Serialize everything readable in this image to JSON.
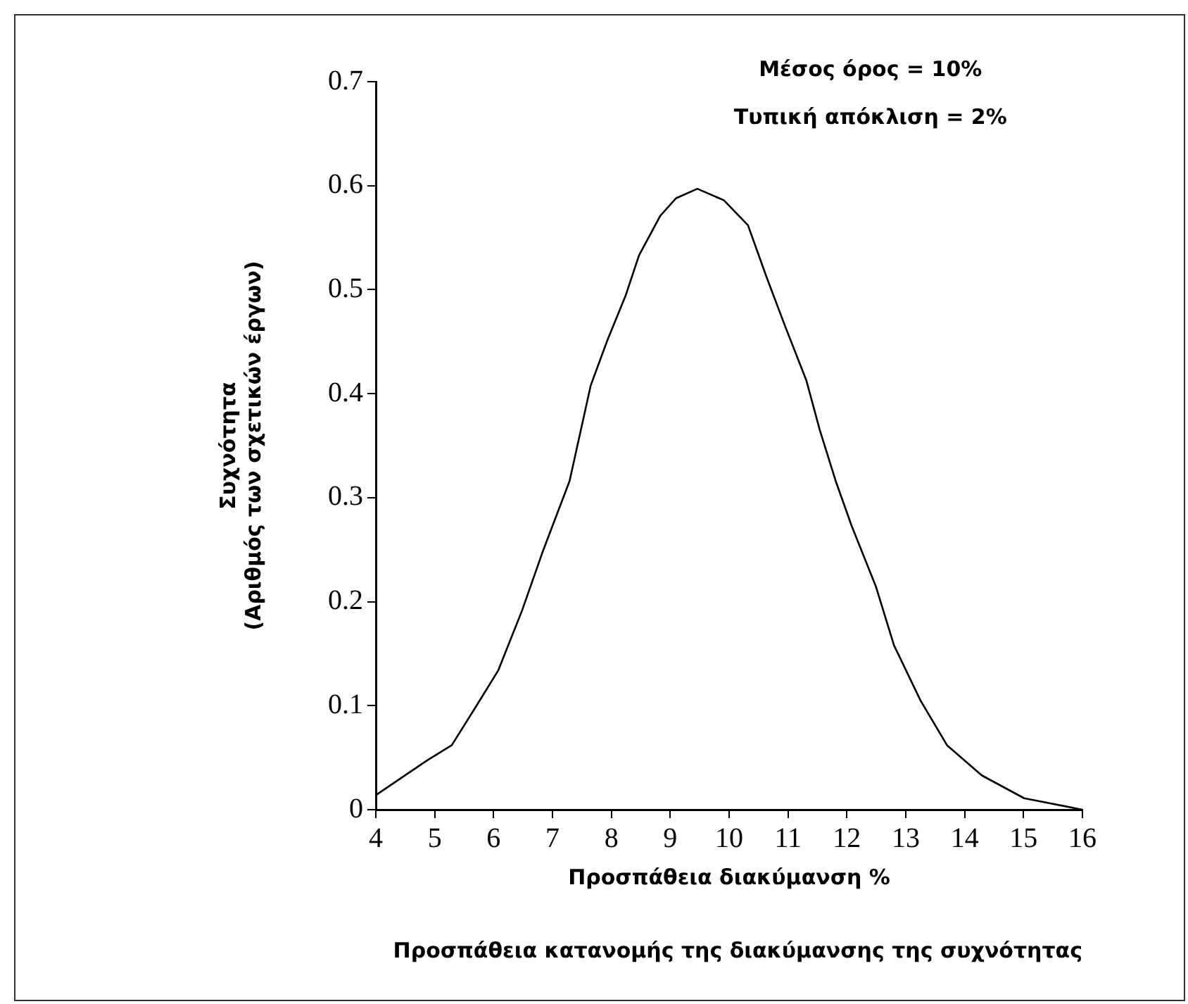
{
  "chart_data": {
    "type": "line",
    "title": "Προσπάθεια κατανομής της διακύμανσης της συχνότητας",
    "xlabel": "Προσπάθεια διακύμανση %",
    "ylabel": "Συχνότητα\n(Αριθμός των σχετικών έργων)",
    "annotations": [
      "Μέσος όρος = 10%",
      "Τυπική απόκλιση = 2%"
    ],
    "series": [
      {
        "color": "#000000",
        "x": [
          4,
          4.86,
          5.29,
          5.71,
          6.08,
          6.48,
          6.84,
          7.29,
          7.65,
          7.93,
          8.24,
          8.47,
          8.83,
          9.1,
          9.46,
          9.91,
          10.32,
          10.63,
          10.95,
          11.31,
          11.54,
          11.81,
          12.08,
          12.49,
          12.8,
          13.25,
          13.7,
          14.29,
          15.01,
          16
        ],
        "values": [
          0.014,
          0.047,
          0.062,
          0.1,
          0.134,
          0.191,
          0.249,
          0.316,
          0.408,
          0.451,
          0.494,
          0.533,
          0.571,
          0.588,
          0.597,
          0.586,
          0.562,
          0.513,
          0.465,
          0.413,
          0.365,
          0.316,
          0.273,
          0.215,
          0.158,
          0.105,
          0.062,
          0.033,
          0.011,
          0
        ]
      }
    ],
    "xlim": [
      4,
      16
    ],
    "xticks": [
      4,
      5,
      6,
      7,
      8,
      9,
      10,
      11,
      12,
      13,
      14,
      15,
      16
    ],
    "ylim": [
      0,
      0.7
    ],
    "yticks": [
      0,
      0.1,
      0.2,
      0.3,
      0.4,
      0.5,
      0.6,
      0.7
    ],
    "grid": false,
    "legend": false,
    "marker": "none",
    "line_style": "solid"
  }
}
